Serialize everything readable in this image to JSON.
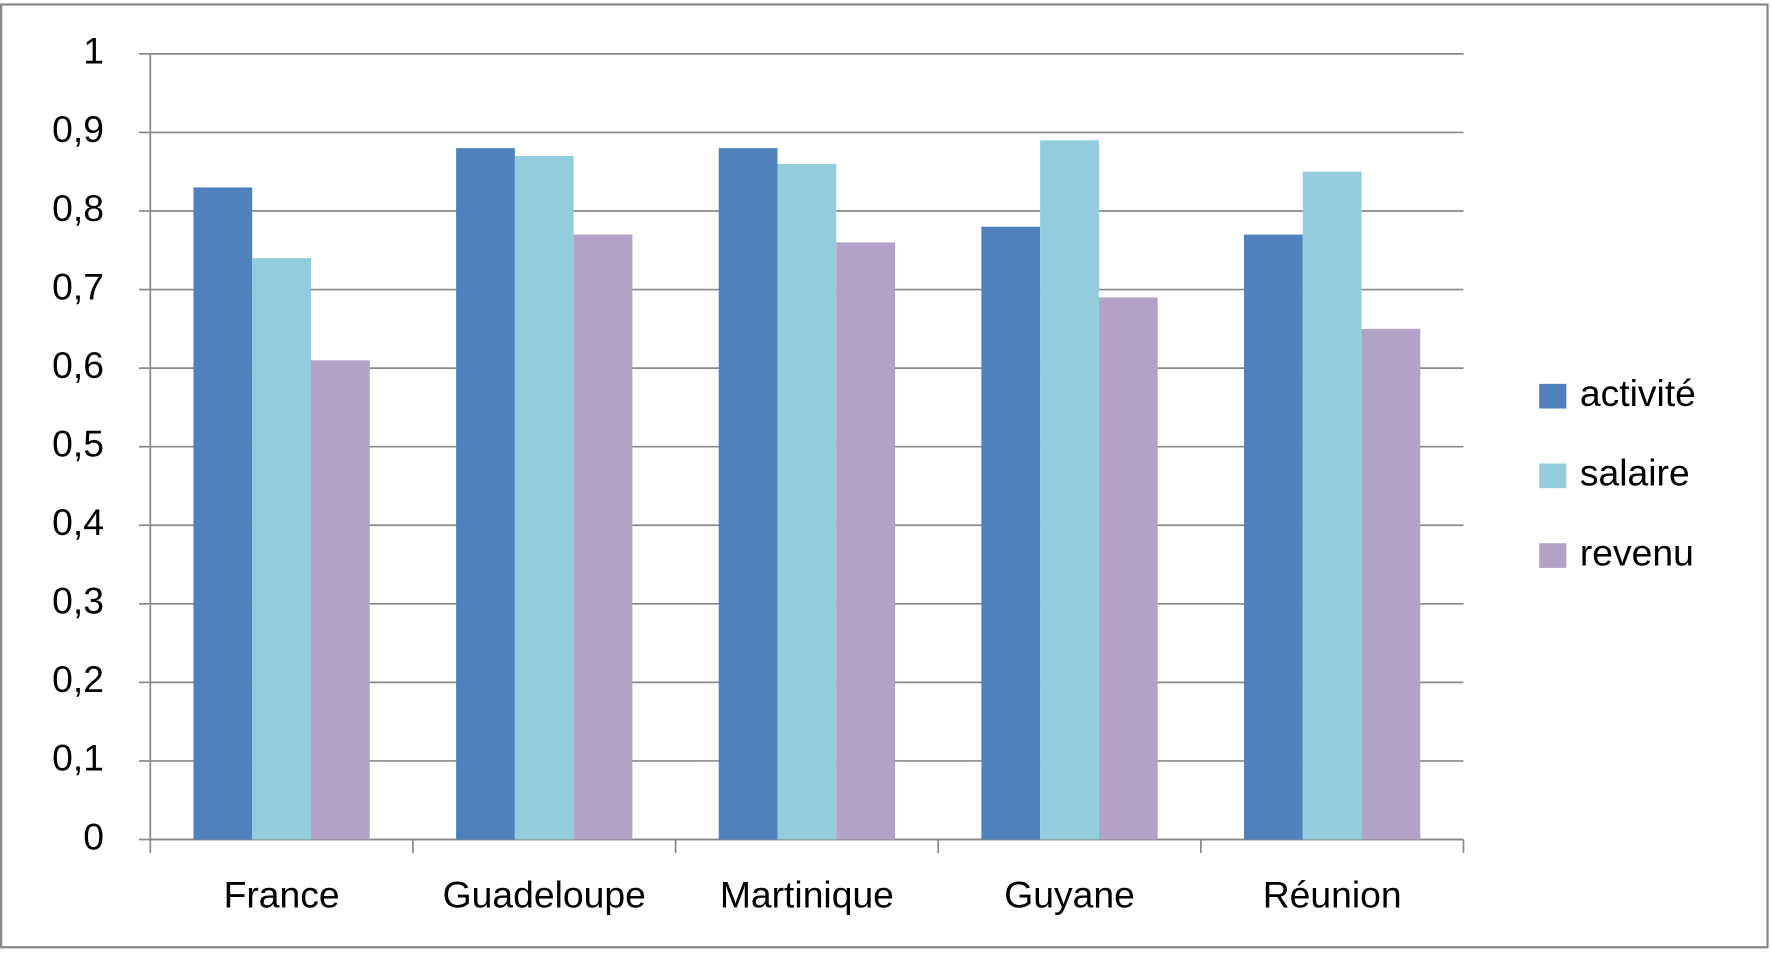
{
  "chart_data": {
    "type": "bar",
    "categories": [
      "France",
      "Guadeloupe",
      "Martinique",
      "Guyane",
      "Réunion"
    ],
    "series": [
      {
        "name": "activité",
        "color": "#4f81bd",
        "values": [
          0.83,
          0.88,
          0.88,
          0.78,
          0.77
        ]
      },
      {
        "name": "salaire",
        "color": "#93cddd",
        "values": [
          0.74,
          0.87,
          0.86,
          0.89,
          0.85
        ]
      },
      {
        "name": "revenu",
        "color": "#b3a2c7",
        "values": [
          0.61,
          0.77,
          0.76,
          0.69,
          0.65
        ]
      }
    ],
    "ylim": [
      0,
      1
    ],
    "yticks": [
      0,
      {
        "value": 0.1,
        "label": "0,1"
      },
      {
        "value": 0.2,
        "label": "0,2"
      },
      {
        "value": 0.3,
        "label": "0,3"
      },
      {
        "value": 0.4,
        "label": "0,4"
      },
      {
        "value": 0.5,
        "label": "0,5"
      },
      {
        "value": 0.6,
        "label": "0,6"
      },
      {
        "value": 0.7,
        "label": "0,7"
      },
      {
        "value": 0.8,
        "label": "0,8"
      },
      {
        "value": 0.9,
        "label": "0,9"
      },
      1
    ],
    "grid": true,
    "legend": "right"
  }
}
